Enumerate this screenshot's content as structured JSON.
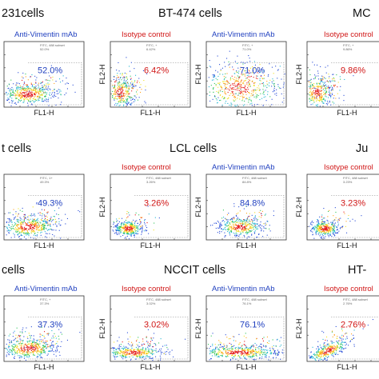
{
  "titles": {
    "mda": "231cells",
    "bt474": "BT-474 cells",
    "mcf": "MC",
    "left2": "t cells",
    "lcl": "LCL cells",
    "jurkat": "Ju",
    "left3": "cells",
    "nccit": "NCCIT cells",
    "ht": "HT-"
  },
  "captions": {
    "anti": "Anti-Vimentin mAb",
    "iso": "Isotype control"
  },
  "colors": {
    "anti_value": "#1f3fbf",
    "iso_value": "#d01515",
    "caption_anti": "#1f3fbf",
    "caption_iso": "#d01515"
  },
  "chart_data": {
    "type": "scatter",
    "xlabel": "FL1-H",
    "ylabel": "FL2-H",
    "panels": [
      {
        "row": 0,
        "col": 0,
        "cells": "231cells",
        "stain": "Anti-Vimentin mAb",
        "percent": "52.0%",
        "gate_label": "FITC, 488 subset",
        "gate_sub": "52.0%",
        "shape": "wide"
      },
      {
        "row": 0,
        "col": 1,
        "cells": "BT-474 cells",
        "stain": "Isotype control",
        "percent": "6.42%",
        "gate_label": "FITC, +",
        "gate_sub": "6.42%",
        "shape": "corner"
      },
      {
        "row": 0,
        "col": 2,
        "cells": "BT-474 cells",
        "stain": "Anti-Vimentin mAb",
        "percent": "71.0%",
        "gate_label": "FITC, +",
        "gate_sub": "71.0%",
        "shape": "diffuse"
      },
      {
        "row": 0,
        "col": 3,
        "cells": "MC",
        "stain": "Isotype control",
        "percent": "9.86%",
        "gate_label": "FITC, +",
        "gate_sub": "9.86%",
        "shape": "corner"
      },
      {
        "row": 1,
        "col": 0,
        "cells": "t cells",
        "stain": "Anti-Vimentin mAb",
        "percent": "49.3%",
        "gate_label": "FITC, 1+",
        "gate_sub": "49.3%",
        "shape": "wide"
      },
      {
        "row": 1,
        "col": 1,
        "cells": "LCL cells",
        "stain": "Isotype control",
        "percent": "3.26%",
        "gate_label": "FITC, 488 subset",
        "gate_sub": "3.26%",
        "shape": "blob"
      },
      {
        "row": 1,
        "col": 2,
        "cells": "LCL cells",
        "stain": "Anti-Vimentin mAb",
        "percent": "84.8%",
        "gate_label": "FITC, 488 subset",
        "gate_sub": "84.8%",
        "shape": "blobright"
      },
      {
        "row": 1,
        "col": 3,
        "cells": "Ju",
        "stain": "Isotype control",
        "percent": "3.23%",
        "gate_label": "FITC, 488 subset",
        "gate_sub": "3.23%",
        "shape": "blob"
      },
      {
        "row": 2,
        "col": 0,
        "cells": "cells",
        "stain": "Anti-Vimentin mAb",
        "percent": "37.3%",
        "gate_label": "FITC, +",
        "gate_sub": "37.3%",
        "shape": "wide"
      },
      {
        "row": 2,
        "col": 1,
        "cells": "NCCIT cells",
        "stain": "Isotype control",
        "percent": "3.02%",
        "gate_label": "FITC, 488 subset",
        "gate_sub": "3.02%",
        "shape": "flat"
      },
      {
        "row": 2,
        "col": 2,
        "cells": "NCCIT cells",
        "stain": "Anti-Vimentin mAb",
        "percent": "76.1%",
        "gate_label": "FITC, 488 subset",
        "gate_sub": "76.1%",
        "shape": "flatwide"
      },
      {
        "row": 2,
        "col": 3,
        "cells": "HT-",
        "stain": "Isotype control",
        "percent": "2.76%",
        "gate_label": "FITC, 488 subset",
        "gate_sub": "2.76%",
        "shape": "tilt"
      }
    ]
  }
}
